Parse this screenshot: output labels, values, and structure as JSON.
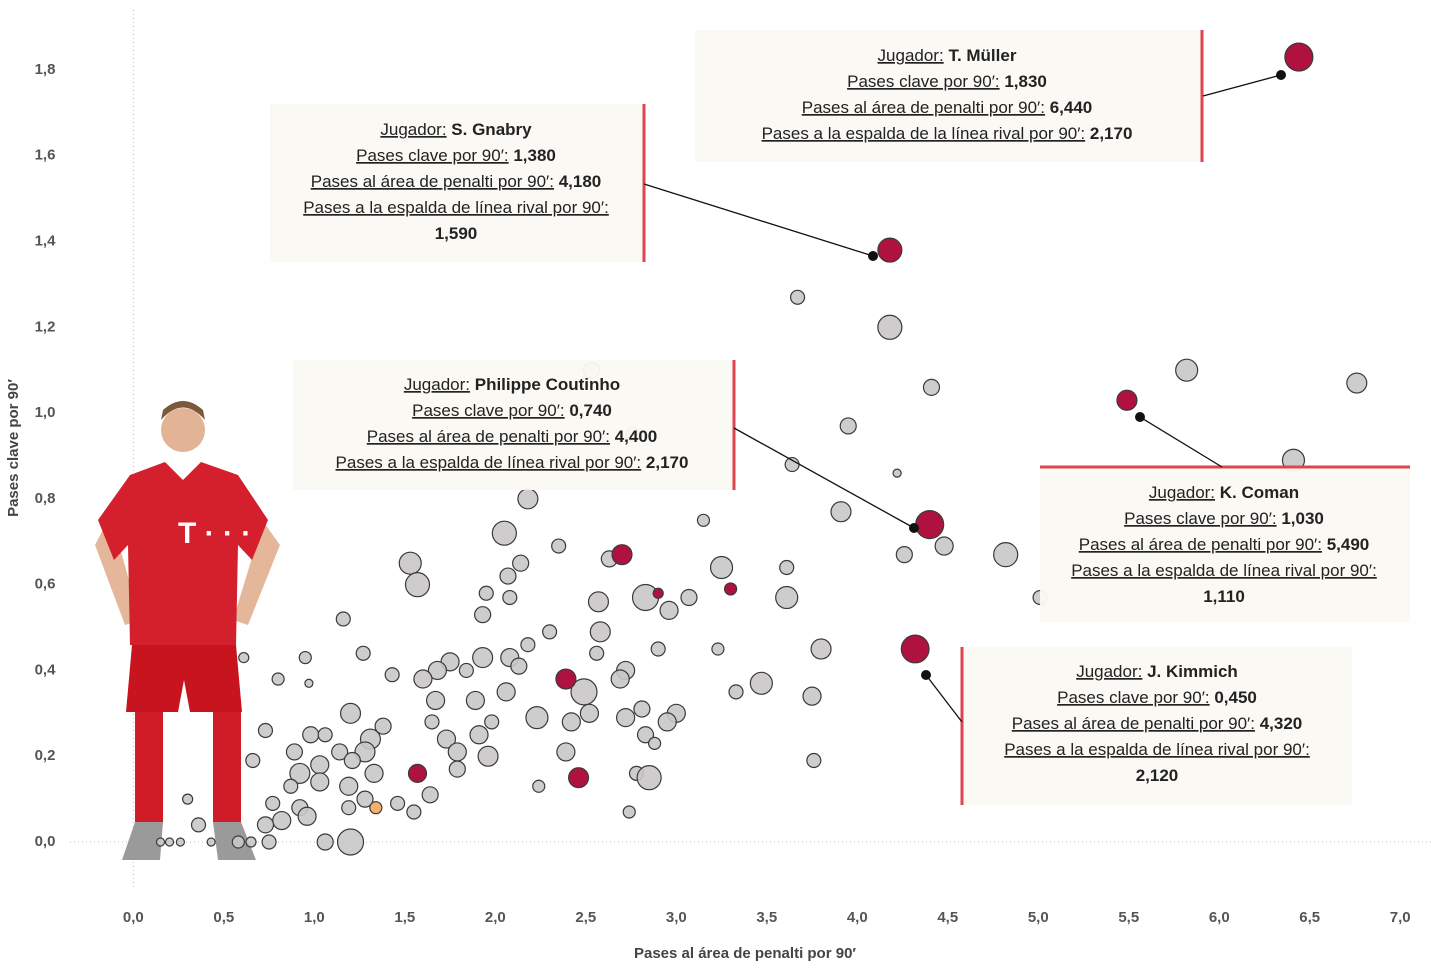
{
  "chart_data": {
    "type": "scatter",
    "x_label": "Pases al área de penalti por 90′",
    "y_label": "Pases clave por 90′",
    "xlim": [
      -0.35,
      7.17
    ],
    "ylim": [
      -0.1,
      1.95
    ],
    "xticks": [
      {
        "value": 0,
        "label": "0,0"
      },
      {
        "value": 0.5,
        "label": "0,5"
      },
      {
        "value": 1,
        "label": "1,0"
      },
      {
        "value": 1.5,
        "label": "1,5"
      },
      {
        "value": 2,
        "label": "2,0"
      },
      {
        "value": 2.5,
        "label": "2,5"
      },
      {
        "value": 3,
        "label": "3,0"
      },
      {
        "value": 3.5,
        "label": "3,5"
      },
      {
        "value": 4,
        "label": "4,0"
      },
      {
        "value": 4.5,
        "label": "4,5"
      },
      {
        "value": 5,
        "label": "5,0"
      },
      {
        "value": 5.5,
        "label": "5,5"
      },
      {
        "value": 6,
        "label": "6,0"
      },
      {
        "value": 6.5,
        "label": "6,5"
      },
      {
        "value": 7,
        "label": "7,0"
      }
    ],
    "yticks": [
      {
        "value": 0,
        "label": "0,0"
      },
      {
        "value": 0.2,
        "label": "0,2"
      },
      {
        "value": 0.4,
        "label": "0,4"
      },
      {
        "value": 0.6,
        "label": "0,6"
      },
      {
        "value": 0.8,
        "label": "0,8"
      },
      {
        "value": 1,
        "label": "1,0"
      },
      {
        "value": 1.2,
        "label": "1,2"
      },
      {
        "value": 1.4,
        "label": "1,4"
      },
      {
        "value": 1.6,
        "label": "1,6"
      },
      {
        "value": 1.8,
        "label": "1,8"
      }
    ],
    "series": [
      {
        "color": "#c9c7c7",
        "x": [
          3.67,
          4.18,
          5.82,
          6.76,
          4.41,
          3.95,
          6.41,
          4.22,
          3.64,
          2.18,
          3.91,
          3.15,
          2.05,
          4.48,
          4.26,
          4.82,
          3.25,
          2.63,
          2.35,
          2.14,
          1.53,
          1.57,
          2.07,
          1.95,
          2.08,
          2.83,
          2.57,
          3.07,
          3.61,
          3.61,
          5.01,
          2.96,
          1.93,
          1.16,
          2.58,
          2.3,
          2.18,
          2.56,
          2.9,
          3.8,
          3.23,
          1.27,
          0.95,
          0.61,
          1.93,
          2.08,
          1.75,
          1.68,
          1.6,
          1.43,
          1.84,
          2.13,
          2.72,
          0.8,
          0.97,
          2.49,
          2.06,
          1.89,
          1.67,
          2.69,
          2.81,
          3.33,
          3.47,
          3.75,
          1.2,
          2.23,
          2.42,
          2.72,
          3.0,
          2.95,
          2.52,
          1.65,
          1.98,
          1.38,
          0.73,
          0.98,
          1.06,
          1.31,
          1.73,
          1.91,
          2.83,
          2.88,
          1.79,
          1.96,
          2.39,
          0.89,
          1.14,
          1.28,
          1.03,
          1.21,
          0.66,
          0.92,
          1.79,
          2.78,
          2.85,
          3.76,
          1.33,
          1.19,
          1.03,
          1.64,
          0.87,
          2.24,
          0.3,
          0.77,
          0.92,
          1.28,
          1.46,
          1.55,
          2.74,
          0.82,
          0.96,
          1.19,
          0.73,
          0.36,
          1.06,
          1.2,
          0.75,
          0.15,
          0.2,
          0.26,
          0.43,
          0.65,
          0.58,
          2.53,
          2.76
        ],
        "values": [
          1.27,
          1.2,
          1.1,
          1.07,
          1.06,
          0.97,
          0.89,
          0.86,
          0.88,
          0.8,
          0.77,
          0.75,
          0.72,
          0.69,
          0.67,
          0.67,
          0.64,
          0.66,
          0.69,
          0.65,
          0.65,
          0.6,
          0.62,
          0.58,
          0.57,
          0.57,
          0.56,
          0.57,
          0.57,
          0.64,
          0.57,
          0.54,
          0.53,
          0.52,
          0.49,
          0.49,
          0.46,
          0.44,
          0.45,
          0.45,
          0.45,
          0.44,
          0.43,
          0.43,
          0.43,
          0.43,
          0.42,
          0.4,
          0.38,
          0.39,
          0.4,
          0.41,
          0.4,
          0.38,
          0.37,
          0.35,
          0.35,
          0.33,
          0.33,
          0.38,
          0.31,
          0.35,
          0.37,
          0.34,
          0.3,
          0.29,
          0.28,
          0.29,
          0.3,
          0.28,
          0.3,
          0.28,
          0.28,
          0.27,
          0.26,
          0.25,
          0.25,
          0.24,
          0.24,
          0.25,
          0.25,
          0.23,
          0.21,
          0.2,
          0.21,
          0.21,
          0.21,
          0.21,
          0.18,
          0.19,
          0.19,
          0.16,
          0.17,
          0.16,
          0.15,
          0.19,
          0.16,
          0.13,
          0.14,
          0.11,
          0.13,
          0.13,
          0.1,
          0.09,
          0.08,
          0.1,
          0.09,
          0.07,
          0.07,
          0.05,
          0.06,
          0.08,
          0.04,
          0.04,
          0.0,
          0.0,
          0.0,
          0.0,
          0.0,
          0.0,
          0.0,
          0.0,
          0.0,
          1.1,
          0.95
        ],
        "sizes": [
          0.54,
          1.6,
          1.34,
          1.1,
          0.71,
          0.71,
          1.34,
          0.18,
          0.54,
          1.1,
          1.1,
          0.4,
          1.6,
          0.9,
          0.71,
          1.6,
          1.34,
          0.71,
          0.54,
          0.71,
          1.34,
          1.6,
          0.71,
          0.54,
          0.54,
          1.87,
          1.1,
          0.71,
          1.34,
          0.54,
          0.54,
          0.9,
          0.71,
          0.54,
          1.1,
          0.54,
          0.54,
          0.54,
          0.54,
          1.1,
          0.4,
          0.54,
          0.4,
          0.28,
          1.1,
          0.9,
          0.9,
          0.9,
          0.9,
          0.54,
          0.54,
          0.71,
          0.9,
          0.4,
          0.18,
          1.87,
          0.9,
          0.9,
          0.9,
          0.9,
          0.71,
          0.54,
          1.34,
          0.9,
          1.1,
          1.34,
          0.9,
          0.9,
          0.9,
          0.9,
          0.9,
          0.54,
          0.54,
          0.71,
          0.54,
          0.71,
          0.54,
          1.1,
          0.9,
          0.9,
          0.71,
          0.4,
          0.9,
          1.1,
          0.9,
          0.71,
          0.71,
          1.1,
          0.9,
          0.71,
          0.54,
          1.1,
          0.71,
          0.54,
          1.6,
          0.54,
          0.9,
          0.9,
          0.9,
          0.71,
          0.54,
          0.4,
          0.28,
          0.54,
          0.71,
          0.71,
          0.54,
          0.54,
          0.4,
          0.9,
          0.9,
          0.54,
          0.71,
          0.54,
          0.71,
          1.87,
          0.54,
          0.18,
          0.18,
          0.18,
          0.18,
          0.28,
          0.4,
          0.71,
          0.54
        ]
      },
      {
        "color": "#b0123f",
        "labels": [
          "T. Müller",
          "S. Gnabry",
          "Philippe Coutinho",
          "K. Coman",
          "J. Kimmich"
        ],
        "x": [
          6.44,
          4.18,
          4.4,
          5.49,
          4.32
        ],
        "x_labels": [
          "6,440",
          "4,180",
          "4,400",
          "5,490",
          "4,320"
        ],
        "values": [
          1.83,
          1.38,
          0.74,
          1.03,
          0.45
        ],
        "value_labels": [
          "1,830",
          "1,380",
          "0,740",
          "1,030",
          "0,450"
        ],
        "sizes": [
          2.17,
          1.59,
          2.17,
          1.11,
          2.12
        ],
        "size_labels": [
          "2,170",
          "1,590",
          "2,170",
          "1,110",
          "2,120"
        ]
      },
      {
        "color": "#b0123f",
        "x": [
          2.7,
          2.39,
          2.46,
          1.57,
          2.9,
          3.3
        ],
        "values": [
          0.67,
          0.38,
          0.15,
          0.16,
          0.58,
          0.59
        ],
        "sizes": [
          1.1,
          1.1,
          1.1,
          0.9,
          0.28,
          0.4
        ]
      },
      {
        "color": "#f5b06b",
        "x": [
          1.34
        ],
        "values": [
          0.08
        ],
        "sizes": [
          0.4
        ]
      }
    ],
    "annotations": [
      {
        "player_key": "Jugador:",
        "y_key": "Pases clave por 90′:",
        "x_key": "Pases al área de penalti por 90′:",
        "size_key": "Pases a la espalda de la línea rival por 90′:"
      },
      {
        "player_key": "Jugador:",
        "y_key": "Pases clave por 90′:",
        "x_key": "Pases al área de penalti por 90′:",
        "size_key": "Pases a la espalda de línea rival por 90′:"
      },
      {
        "player_key": "Jugador:",
        "y_key": "Pases clave por 90′:",
        "x_key": "Pases al área de penalti por 90′:",
        "size_key": "Pases a la espalda de línea rival por 90′:"
      },
      {
        "player_key": "Jugador:",
        "y_key": "Pases clave por 90′:",
        "x_key": "Pases al área de penalti por 90′:",
        "size_key": "Pases a la espalda de línea rival por 90′:"
      },
      {
        "player_key": "Jugador:",
        "y_key": "Pases clave por 90′:",
        "x_key": "Pases al área de penalti por 90′:",
        "size_key": "Pases a la espalda de línea rival por 90′:"
      }
    ]
  }
}
